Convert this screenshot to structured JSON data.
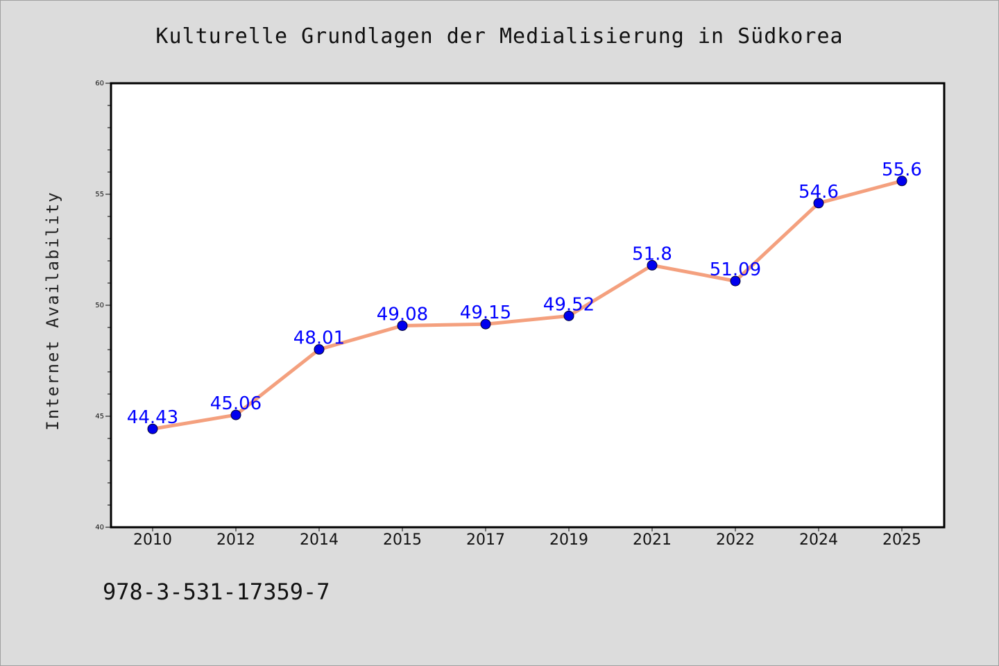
{
  "chart_data": {
    "type": "line",
    "title": "Kulturelle Grundlagen der Medialisierung in Südkorea",
    "xlabel": "",
    "ylabel": "Internet Availability",
    "categories": [
      "2010",
      "2012",
      "2014",
      "2015",
      "2017",
      "2019",
      "2021",
      "2022",
      "2024",
      "2025"
    ],
    "series": [
      {
        "values": [
          44.43,
          45.06,
          48.01,
          49.08,
          49.15,
          49.52,
          51.8,
          51.09,
          54.6,
          55.6
        ],
        "labels": [
          "44.43",
          "45.06",
          "48.01",
          "49.08",
          "49.15",
          "49.52",
          "51.8",
          "51.09",
          "54.6",
          "55.6"
        ],
        "line_color": "#f4a07e",
        "marker_color": "#0000ee"
      }
    ],
    "ylim": [
      40,
      60
    ],
    "yticks": [
      "40",
      "45",
      "50",
      "55",
      "60"
    ],
    "grid": false,
    "legend": "none",
    "footer": "978-3-531-17359-7"
  }
}
